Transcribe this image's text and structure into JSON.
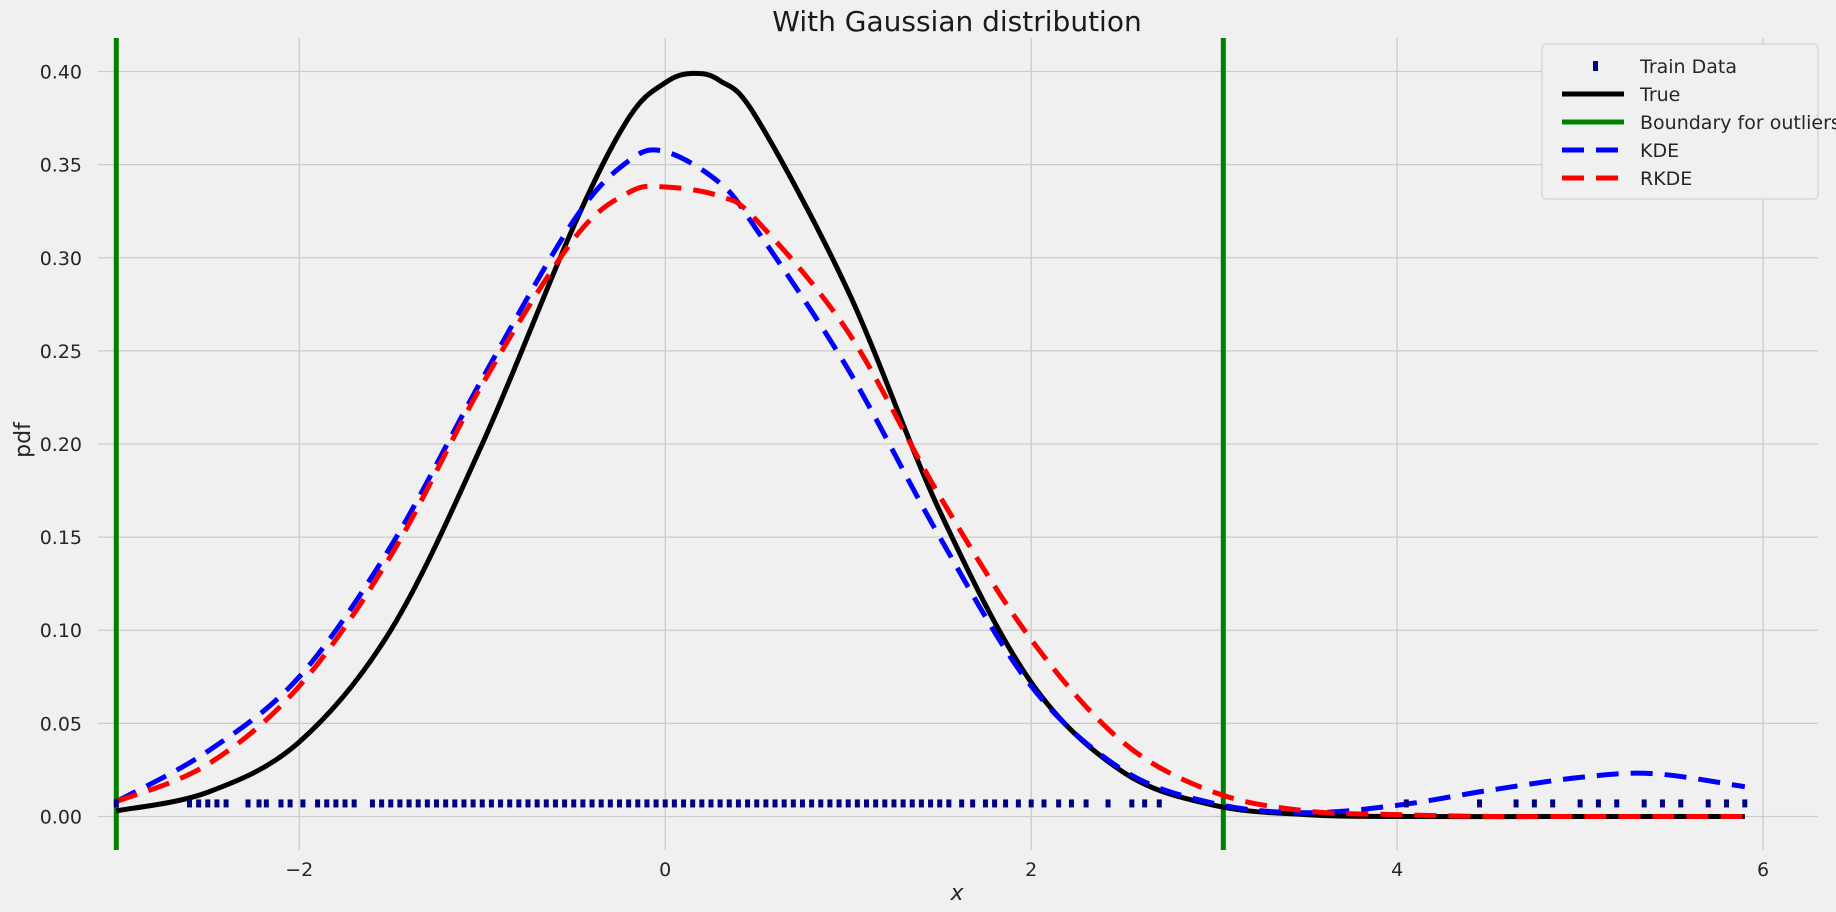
{
  "chart_data": {
    "type": "line",
    "title": "With Gaussian distribution",
    "xlabel": "x",
    "ylabel": "pdf",
    "xlim": [
      -3.1,
      6.3
    ],
    "ylim": [
      -0.018,
      0.418
    ],
    "xticks": [
      -2,
      0,
      2,
      4,
      6
    ],
    "xtick_labels": [
      "−2",
      "0",
      "2",
      "4",
      "6"
    ],
    "yticks": [
      0.0,
      0.05,
      0.1,
      0.15,
      0.2,
      0.25,
      0.3,
      0.35,
      0.4
    ],
    "ytick_labels": [
      "0.00",
      "0.05",
      "0.10",
      "0.15",
      "0.20",
      "0.25",
      "0.30",
      "0.35",
      "0.40"
    ],
    "grid": true,
    "legend_position": "top-right",
    "legend": [
      {
        "name": "Train Data",
        "color": "#000080",
        "style": "marker"
      },
      {
        "name": "True",
        "color": "#000000",
        "style": "solid"
      },
      {
        "name": "Boundary for outliers",
        "color": "#008000",
        "style": "solid"
      },
      {
        "name": "KDE",
        "color": "#0000ff",
        "style": "dashed"
      },
      {
        "name": "RKDE",
        "color": "#ff0000",
        "style": "dashed"
      }
    ],
    "boundaries": [
      -3.0,
      3.05
    ],
    "train_data": {
      "y": 0.007,
      "x": [
        -3.0,
        -2.6,
        -2.55,
        -2.5,
        -2.45,
        -2.4,
        -2.28,
        -2.22,
        -2.18,
        -2.1,
        -2.05,
        -1.98,
        -1.9,
        -1.85,
        -1.8,
        -1.75,
        -1.7,
        -1.6,
        -1.55,
        -1.5,
        -1.45,
        -1.4,
        -1.35,
        -1.3,
        -1.25,
        -1.2,
        -1.15,
        -1.1,
        -1.05,
        -1.0,
        -0.95,
        -0.9,
        -0.85,
        -0.8,
        -0.75,
        -0.7,
        -0.65,
        -0.6,
        -0.55,
        -0.5,
        -0.45,
        -0.4,
        -0.35,
        -0.3,
        -0.25,
        -0.2,
        -0.15,
        -0.1,
        -0.05,
        0.0,
        0.05,
        0.1,
        0.15,
        0.2,
        0.25,
        0.3,
        0.35,
        0.4,
        0.45,
        0.5,
        0.55,
        0.6,
        0.65,
        0.7,
        0.75,
        0.8,
        0.85,
        0.9,
        0.95,
        1.0,
        1.05,
        1.1,
        1.15,
        1.2,
        1.25,
        1.3,
        1.35,
        1.4,
        1.45,
        1.5,
        1.55,
        1.62,
        1.68,
        1.75,
        1.8,
        1.86,
        1.93,
        2.0,
        2.07,
        2.15,
        2.22,
        2.3,
        2.42,
        2.55,
        2.62,
        2.7,
        4.05,
        4.45,
        4.65,
        4.75,
        4.85,
        5.0,
        5.1,
        5.2,
        5.35,
        5.45,
        5.55,
        5.7,
        5.8,
        5.9
      ]
    },
    "series": [
      {
        "name": "True",
        "color": "#000000",
        "dash": "none",
        "x": [
          -3.0,
          -2.5,
          -2.0,
          -1.5,
          -1.0,
          -0.5,
          -0.2,
          0.0,
          0.15,
          0.3,
          0.5,
          1.0,
          1.5,
          2.0,
          2.5,
          3.0,
          3.5,
          4.0,
          5.0,
          5.9
        ],
        "y": [
          0.003,
          0.013,
          0.04,
          0.1,
          0.2,
          0.317,
          0.375,
          0.394,
          0.399,
          0.395,
          0.375,
          0.282,
          0.164,
          0.072,
          0.024,
          0.006,
          0.001,
          0.0,
          0.0,
          0.0
        ]
      },
      {
        "name": "KDE",
        "color": "#0000ff",
        "dash": "22,12",
        "x": [
          -3.0,
          -2.5,
          -2.0,
          -1.5,
          -1.0,
          -0.5,
          -0.2,
          0.0,
          0.3,
          0.5,
          1.0,
          1.5,
          2.0,
          2.5,
          3.0,
          3.5,
          4.0,
          4.5,
          5.0,
          5.4,
          5.9
        ],
        "y": [
          0.008,
          0.035,
          0.075,
          0.145,
          0.235,
          0.32,
          0.352,
          0.357,
          0.34,
          0.315,
          0.24,
          0.15,
          0.07,
          0.025,
          0.007,
          0.002,
          0.006,
          0.014,
          0.021,
          0.023,
          0.016
        ]
      },
      {
        "name": "RKDE",
        "color": "#ff0000",
        "dash": "22,12",
        "x": [
          -3.0,
          -2.5,
          -2.0,
          -1.5,
          -1.0,
          -0.5,
          -0.2,
          0.0,
          0.3,
          0.5,
          1.0,
          1.5,
          2.0,
          2.5,
          3.0,
          3.5,
          4.0,
          4.5,
          5.0,
          5.5,
          5.9
        ],
        "y": [
          0.008,
          0.028,
          0.07,
          0.14,
          0.232,
          0.31,
          0.335,
          0.338,
          0.333,
          0.32,
          0.26,
          0.172,
          0.095,
          0.04,
          0.013,
          0.003,
          0.001,
          0.0,
          0.0,
          0.0,
          0.0
        ]
      }
    ]
  }
}
